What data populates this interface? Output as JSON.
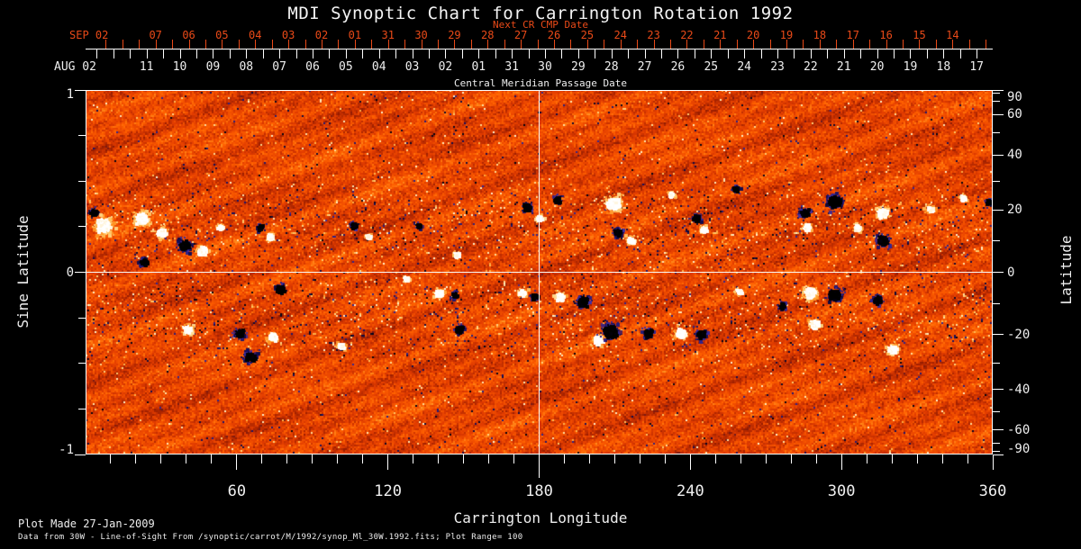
{
  "chart_data": {
    "type": "heatmap",
    "title": "MDI Synoptic Chart for Carrington Rotation 1992",
    "top_axis": {
      "label": "Central Meridian Passage Date",
      "next_cr_label": "Next CR CMP Date",
      "next_cr_start": "SEP 02",
      "next_cr_days": [
        "07",
        "06",
        "05",
        "04",
        "03",
        "02",
        "01",
        "31",
        "30",
        "29",
        "28",
        "27",
        "26",
        "25",
        "24",
        "23",
        "22",
        "21",
        "20",
        "19",
        "18",
        "17",
        "16",
        "15",
        "14"
      ],
      "cmp_start": "AUG 02",
      "cmp_days": [
        "11",
        "10",
        "09",
        "08",
        "07",
        "06",
        "05",
        "04",
        "03",
        "02",
        "01",
        "31",
        "30",
        "29",
        "28",
        "27",
        "26",
        "25",
        "24",
        "23",
        "22",
        "21",
        "20",
        "19",
        "18",
        "17"
      ]
    },
    "xlabel": "Carrington Longitude",
    "xlim": [
      0,
      360
    ],
    "x_major_ticks": [
      60,
      120,
      180,
      240,
      300,
      360
    ],
    "x_minor_step_deg": 10,
    "ylabel_left": "Sine Latitude",
    "ylim_sine": [
      -1,
      1
    ],
    "y_ticks_left_labeled": [
      1,
      0,
      -1
    ],
    "y_ticks_left_minor_step": 0.25,
    "ylabel_right": "Latitude",
    "y_ticks_right_labeled": [
      90,
      60,
      40,
      20,
      0,
      -20,
      -40,
      -60,
      -90
    ],
    "y_ticks_right_minor_step_deg": 10,
    "grid_crosshair": {
      "longitude": 180,
      "latitude": 0
    },
    "plot_range": 100,
    "colormap": "negative flux: black/blue-violet; neutral: red-orange; positive flux: yellow/white",
    "active_regions": [
      [
        7,
        0.26,
        14,
        "p"
      ],
      [
        3,
        0.33,
        7,
        "n"
      ],
      [
        22,
        0.3,
        12,
        "p"
      ],
      [
        30,
        0.22,
        9,
        "p"
      ],
      [
        39,
        0.15,
        10,
        "n"
      ],
      [
        46,
        0.12,
        9,
        "p"
      ],
      [
        53,
        0.25,
        6,
        "p"
      ],
      [
        69,
        0.25,
        6,
        "n"
      ],
      [
        73,
        0.2,
        6,
        "p"
      ],
      [
        23,
        0.06,
        7,
        "n"
      ],
      [
        106,
        0.26,
        6,
        "n"
      ],
      [
        112,
        0.2,
        5,
        "p"
      ],
      [
        132,
        0.26,
        5,
        "n"
      ],
      [
        147,
        0.1,
        6,
        "p"
      ],
      [
        175,
        0.36,
        8,
        "n"
      ],
      [
        180,
        0.3,
        6,
        "p"
      ],
      [
        187,
        0.4,
        7,
        "n"
      ],
      [
        209,
        0.38,
        13,
        "p"
      ],
      [
        211,
        0.22,
        8,
        "n"
      ],
      [
        216,
        0.18,
        7,
        "p"
      ],
      [
        232,
        0.43,
        5,
        "p"
      ],
      [
        242,
        0.3,
        7,
        "n"
      ],
      [
        245,
        0.24,
        6,
        "p"
      ],
      [
        258,
        0.46,
        6,
        "n"
      ],
      [
        285,
        0.33,
        8,
        "n"
      ],
      [
        286,
        0.25,
        7,
        "p"
      ],
      [
        297,
        0.39,
        12,
        "n"
      ],
      [
        306,
        0.25,
        6,
        "p"
      ],
      [
        316,
        0.33,
        10,
        "p"
      ],
      [
        316,
        0.18,
        10,
        "n"
      ],
      [
        335,
        0.35,
        7,
        "p"
      ],
      [
        348,
        0.41,
        6,
        "p"
      ],
      [
        358,
        0.39,
        5,
        "n"
      ],
      [
        77,
        -0.09,
        8,
        "n"
      ],
      [
        40,
        -0.31,
        8,
        "p"
      ],
      [
        61,
        -0.33,
        8,
        "n"
      ],
      [
        74,
        -0.35,
        8,
        "p"
      ],
      [
        65,
        -0.46,
        9,
        "n"
      ],
      [
        101,
        -0.4,
        6,
        "p"
      ],
      [
        127,
        -0.03,
        5,
        "p"
      ],
      [
        140,
        -0.11,
        7,
        "p"
      ],
      [
        146,
        -0.12,
        6,
        "n"
      ],
      [
        148,
        -0.31,
        7,
        "n"
      ],
      [
        173,
        -0.11,
        7,
        "p"
      ],
      [
        178,
        -0.13,
        6,
        "n"
      ],
      [
        188,
        -0.13,
        8,
        "p"
      ],
      [
        197,
        -0.16,
        10,
        "n"
      ],
      [
        203,
        -0.37,
        9,
        "p"
      ],
      [
        208,
        -0.32,
        14,
        "n"
      ],
      [
        223,
        -0.33,
        8,
        "n"
      ],
      [
        236,
        -0.33,
        10,
        "p"
      ],
      [
        244,
        -0.34,
        8,
        "n"
      ],
      [
        259,
        -0.1,
        6,
        "p"
      ],
      [
        276,
        -0.18,
        6,
        "n"
      ],
      [
        287,
        -0.11,
        11,
        "p"
      ],
      [
        297,
        -0.12,
        11,
        "n"
      ],
      [
        289,
        -0.28,
        9,
        "p"
      ],
      [
        314,
        -0.15,
        8,
        "n"
      ],
      [
        320,
        -0.42,
        9,
        "p"
      ]
    ]
  },
  "footer": {
    "line1": "Plot Made 27-Jan-2009",
    "line2": "Data from 30W - Line-of-Sight From /synoptic/carrot/M/1992/synop_Ml_30W.1992.fits; Plot Range=  100"
  },
  "colors": {
    "background": "#000000",
    "axis": "#ffffff",
    "next_cr_red": "#ea4a18",
    "field_base": "#e83c00",
    "positive_flux": "#ffffff",
    "negative_flux": "#140c50"
  }
}
